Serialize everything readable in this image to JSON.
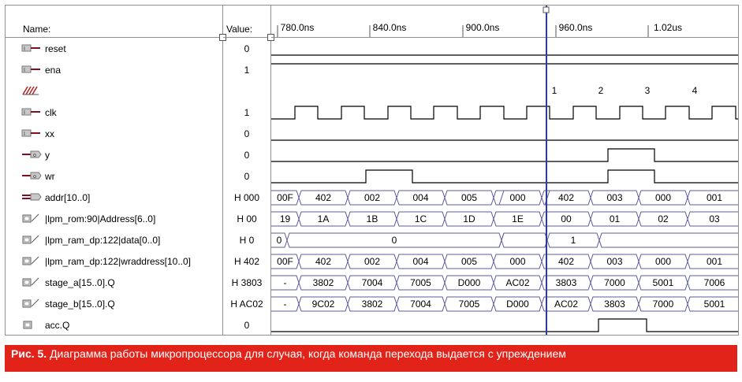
{
  "header": {
    "name_label": "Name:",
    "value_label": "Value:"
  },
  "timeline": {
    "ticks": [
      "780.0ns",
      "840.0ns",
      "900.0ns",
      "960.0ns",
      "1.02us"
    ],
    "clock_numbers": [
      "1",
      "2",
      "3",
      "4"
    ]
  },
  "signals": [
    {
      "name": "reset",
      "value": "0",
      "icon": "input-pin-icon"
    },
    {
      "name": "ena",
      "value": "1",
      "icon": "input-pin-icon"
    },
    {
      "name": "",
      "value": "",
      "icon": "bus-marker-icon"
    },
    {
      "name": "clk",
      "value": "1",
      "icon": "input-pin-icon"
    },
    {
      "name": "xx",
      "value": "0",
      "icon": "input-pin-icon"
    },
    {
      "name": "y",
      "value": "0",
      "icon": "output-pin-icon"
    },
    {
      "name": "wr",
      "value": "0",
      "icon": "output-pin-icon"
    },
    {
      "name": "addr[10..0]",
      "value": "H 000",
      "icon": "output-bus-icon"
    },
    {
      "name": "|lpm_rom:90|Address[6..0]",
      "value": "H 00",
      "icon": "node-icon"
    },
    {
      "name": "|lpm_ram_dp:122|data[0..0]",
      "value": "H 0",
      "icon": "node-icon"
    },
    {
      "name": "|lpm_ram_dp:122|wraddress[10..0]",
      "value": "H 402",
      "icon": "node-icon"
    },
    {
      "name": "stage_a[15..0].Q",
      "value": "H 3803",
      "icon": "node-icon"
    },
    {
      "name": "stage_b[15..0].Q",
      "value": "H AC02",
      "icon": "node-icon"
    },
    {
      "name": "acc.Q",
      "value": "0",
      "icon": "register-icon"
    }
  ],
  "bus_values": {
    "addr": [
      "00F",
      "402",
      "002",
      "004",
      "005",
      "000",
      "402",
      "003",
      "000",
      "001"
    ],
    "rom_address": [
      "19",
      "1A",
      "1B",
      "1C",
      "1D",
      "1E",
      "00",
      "01",
      "02",
      "03"
    ],
    "ram_data": [
      "0",
      "0",
      "0",
      "1"
    ],
    "wraddress": [
      "00F",
      "402",
      "002",
      "004",
      "005",
      "000",
      "402",
      "003",
      "000",
      "001"
    ],
    "stage_a": [
      "-",
      "3802",
      "7004",
      "7005",
      "D000",
      "AC02",
      "3803",
      "7000",
      "5001",
      "7006"
    ],
    "stage_b": [
      "-",
      "9C02",
      "3802",
      "7004",
      "7005",
      "D000",
      "AC02",
      "3803",
      "7000",
      "5001"
    ]
  },
  "colors": {
    "cursor": "#2f3aa0",
    "bus": "#5b5b9e",
    "caption_bg": "#e2231a"
  },
  "caption": {
    "label": "Рис. 5.",
    "text": "Диаграмма работы микропроцессора для случая, когда команда перехода выдается с упреждением"
  }
}
